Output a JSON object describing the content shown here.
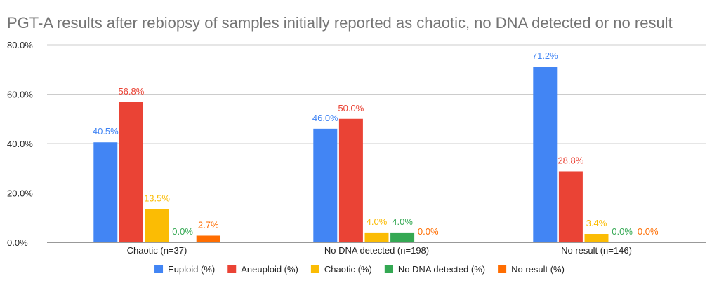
{
  "chart_data": {
    "type": "bar",
    "title": "PGT-A results after rebiopsy of samples initially reported as chaotic, no DNA detected or no result",
    "categories": [
      "Chaotic (n=37)",
      "No DNA detected (n=198)",
      "No result (n=146)"
    ],
    "series": [
      {
        "name": "Euploid (%)",
        "color": "#4285F4",
        "values": [
          40.5,
          46.0,
          71.2
        ],
        "labels": [
          "40.5%",
          "46.0%",
          "71.2%"
        ]
      },
      {
        "name": "Aneuploid (%)",
        "color": "#EA4335",
        "values": [
          56.8,
          50.0,
          28.8
        ],
        "labels": [
          "56.8%",
          "50.0%",
          "28.8%"
        ]
      },
      {
        "name": "Chaotic (%)",
        "color": "#FBBC04",
        "values": [
          13.5,
          4.0,
          3.4
        ],
        "labels": [
          "13.5%",
          "4.0%",
          "3.4%"
        ]
      },
      {
        "name": "No DNA detected (%)",
        "color": "#34A853",
        "values": [
          0.0,
          4.0,
          0.0
        ],
        "labels": [
          "0.0%",
          "4.0%",
          "0.0%"
        ]
      },
      {
        "name": "No result (%)",
        "color": "#FF6D01",
        "values": [
          2.7,
          0.0,
          0.0
        ],
        "labels": [
          "2.7%",
          "0.0%",
          "0.0%"
        ]
      }
    ],
    "yticks": [
      "0.0%",
      "20.0%",
      "40.0%",
      "60.0%",
      "80.0%"
    ],
    "ylim": [
      0,
      80
    ],
    "grid": true,
    "legend": "bottom"
  }
}
